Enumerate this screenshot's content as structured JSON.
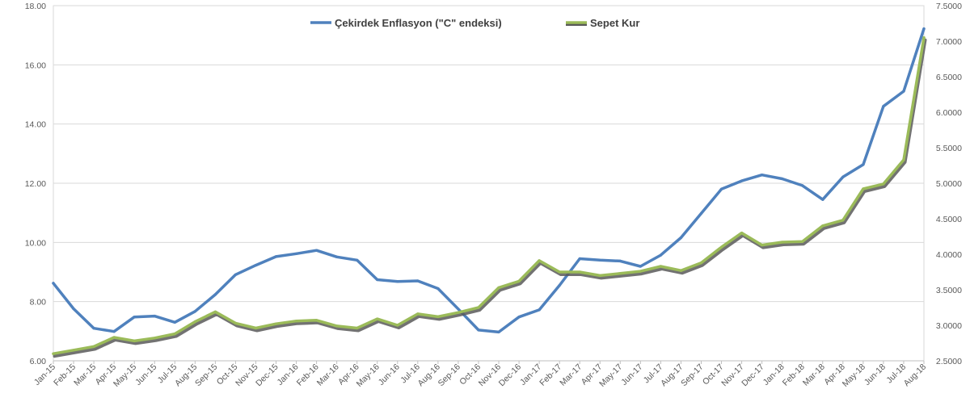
{
  "chart_data": {
    "type": "line",
    "title": "",
    "xlabel": "",
    "ylabel": "",
    "x": [
      "Jan-15",
      "Feb-15",
      "Mar-15",
      "Apr-15",
      "May-15",
      "Jun-15",
      "Jul-15",
      "Aug-15",
      "Sep-15",
      "Oct-15",
      "Nov-15",
      "Dec-15",
      "Jan-16",
      "Feb-16",
      "Mar-16",
      "Apr-16",
      "May-16",
      "Jun-16",
      "Jul-16",
      "Aug-16",
      "Sep-16",
      "Oct-16",
      "Nov-16",
      "Dec-16",
      "Jan-17",
      "Feb-17",
      "Mar-17",
      "Apr-17",
      "May-17",
      "Jun-17",
      "Jul-17",
      "Aug-17",
      "Sep-17",
      "Oct-17",
      "Nov-17",
      "Dec-17",
      "Jan-18",
      "Feb-18",
      "Mar-18",
      "Apr-18",
      "May-18",
      "Jun-18",
      "Jul-18",
      "Aug-18"
    ],
    "ylim_left": [
      6,
      18
    ],
    "yticks_left": [
      "6.00",
      "8.00",
      "10.00",
      "12.00",
      "14.00",
      "16.00",
      "18.00"
    ],
    "ylim_right": [
      2.5,
      7.5
    ],
    "yticks_right": [
      "2.5000",
      "3.0000",
      "3.5000",
      "4.0000",
      "4.5000",
      "5.0000",
      "5.5000",
      "6.0000",
      "6.5000",
      "7.0000",
      "7.5000"
    ],
    "grid": true,
    "legend_position": "top-center",
    "series": [
      {
        "name": "Çekirdek Enflasyon (\"C\" endeksi)",
        "axis": "left",
        "color": "#4f81bd",
        "values": [
          8.62,
          7.76,
          7.1,
          6.99,
          7.48,
          7.51,
          7.3,
          7.67,
          8.24,
          8.91,
          9.23,
          9.52,
          9.62,
          9.73,
          9.51,
          9.4,
          8.74,
          8.68,
          8.7,
          8.44,
          7.75,
          7.04,
          6.97,
          7.48,
          7.72,
          8.55,
          9.45,
          9.4,
          9.37,
          9.19,
          9.57,
          10.16,
          10.98,
          11.8,
          12.08,
          12.28,
          12.15,
          11.92,
          11.45,
          12.21,
          12.63,
          14.6,
          15.11,
          17.22
        ]
      },
      {
        "name": "Sepet Kur",
        "axis": "right",
        "color": "#9bbb59",
        "shadow_color": "#595959",
        "values": [
          2.6,
          2.65,
          2.7,
          2.83,
          2.78,
          2.82,
          2.88,
          3.05,
          3.19,
          3.03,
          2.96,
          3.02,
          3.06,
          3.07,
          2.99,
          2.96,
          3.09,
          3.0,
          3.16,
          3.12,
          3.18,
          3.25,
          3.53,
          3.62,
          3.91,
          3.75,
          3.75,
          3.7,
          3.73,
          3.76,
          3.83,
          3.77,
          3.88,
          4.1,
          4.3,
          4.13,
          4.17,
          4.18,
          4.4,
          4.48,
          4.92,
          4.99,
          5.33,
          7.05
        ]
      }
    ]
  }
}
